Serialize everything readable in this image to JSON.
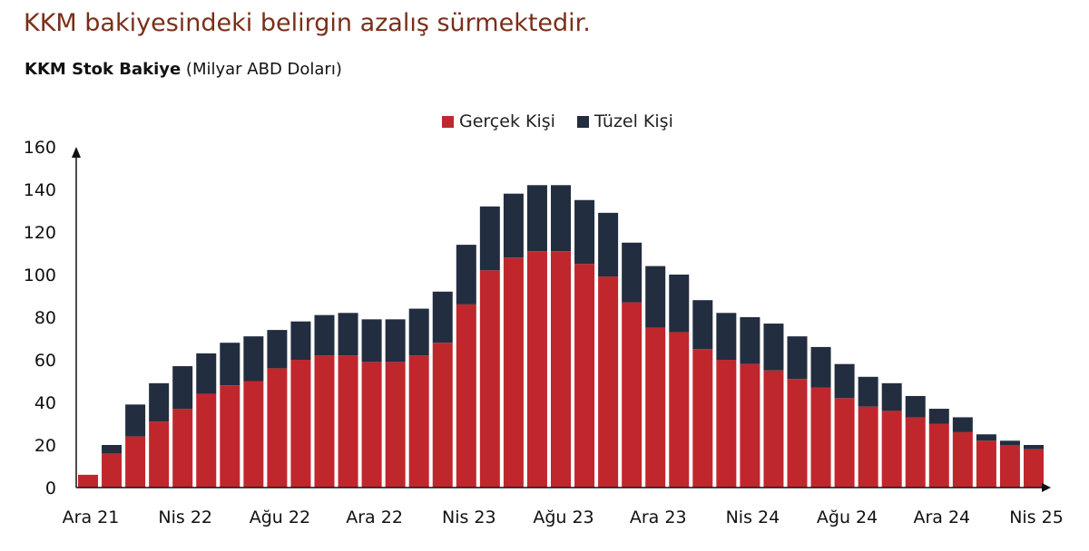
{
  "title": "KKM bakiyesindeki belirgin azalış sürmektedir.",
  "subtitle_bold": "KKM Stok Bakiye",
  "subtitle_rest": " (Milyar ABD Doları)",
  "colors": {
    "gercek": "#c0272d",
    "tuzel": "#232d40",
    "title": "#7a2e18"
  },
  "chart_data": {
    "type": "bar",
    "stacked": true,
    "legend_position": "top-center",
    "grid": false,
    "ylim": [
      0,
      160
    ],
    "yticks": [
      0,
      20,
      40,
      60,
      80,
      100,
      120,
      140,
      160
    ],
    "xtick_labels": [
      "Ara 21",
      "Nis 22",
      "Ağu 22",
      "Ara 22",
      "Nis 23",
      "Ağu 23",
      "Ara 23",
      "Nis 24",
      "Ağu 24",
      "Ara 24",
      "Nis 25"
    ],
    "categories": [
      "Ara 21",
      "Oca 22",
      "Şub 22",
      "Mar 22",
      "Nis 22",
      "May 22",
      "Haz 22",
      "Tem 22",
      "Ağu 22",
      "Eyl 22",
      "Eki 22",
      "Kas 22",
      "Ara 22",
      "Oca 23",
      "Şub 23",
      "Mar 23",
      "Nis 23",
      "May 23",
      "Haz 23",
      "Tem 23",
      "Ağu 23",
      "Eyl 23",
      "Eki 23",
      "Kas 23",
      "Ara 23",
      "Oca 24",
      "Şub 24",
      "Mar 24",
      "Nis 24",
      "May 24",
      "Haz 24",
      "Tem 24",
      "Ağu 24",
      "Eyl 24",
      "Eki 24",
      "Kas 24",
      "Ara 24",
      "Oca 25",
      "Şub 25",
      "Mar 25",
      "Nis 25"
    ],
    "series": [
      {
        "name": "Gerçek Kişi",
        "values": [
          6,
          16,
          24,
          31,
          37,
          44,
          48,
          50,
          56,
          60,
          62,
          62,
          59,
          59,
          62,
          68,
          86,
          102,
          108,
          111,
          111,
          105,
          99,
          87,
          75,
          73,
          65,
          60,
          58,
          55,
          51,
          47,
          42,
          38,
          36,
          33,
          30,
          26,
          22,
          20,
          18
        ]
      },
      {
        "name": "Tüzel Kişi",
        "values": [
          0,
          4,
          15,
          18,
          20,
          19,
          20,
          21,
          18,
          18,
          19,
          20,
          20,
          20,
          22,
          24,
          28,
          30,
          30,
          31,
          31,
          30,
          30,
          28,
          29,
          27,
          23,
          22,
          22,
          22,
          20,
          19,
          16,
          14,
          13,
          10,
          7,
          7,
          3,
          2,
          2
        ]
      }
    ]
  }
}
